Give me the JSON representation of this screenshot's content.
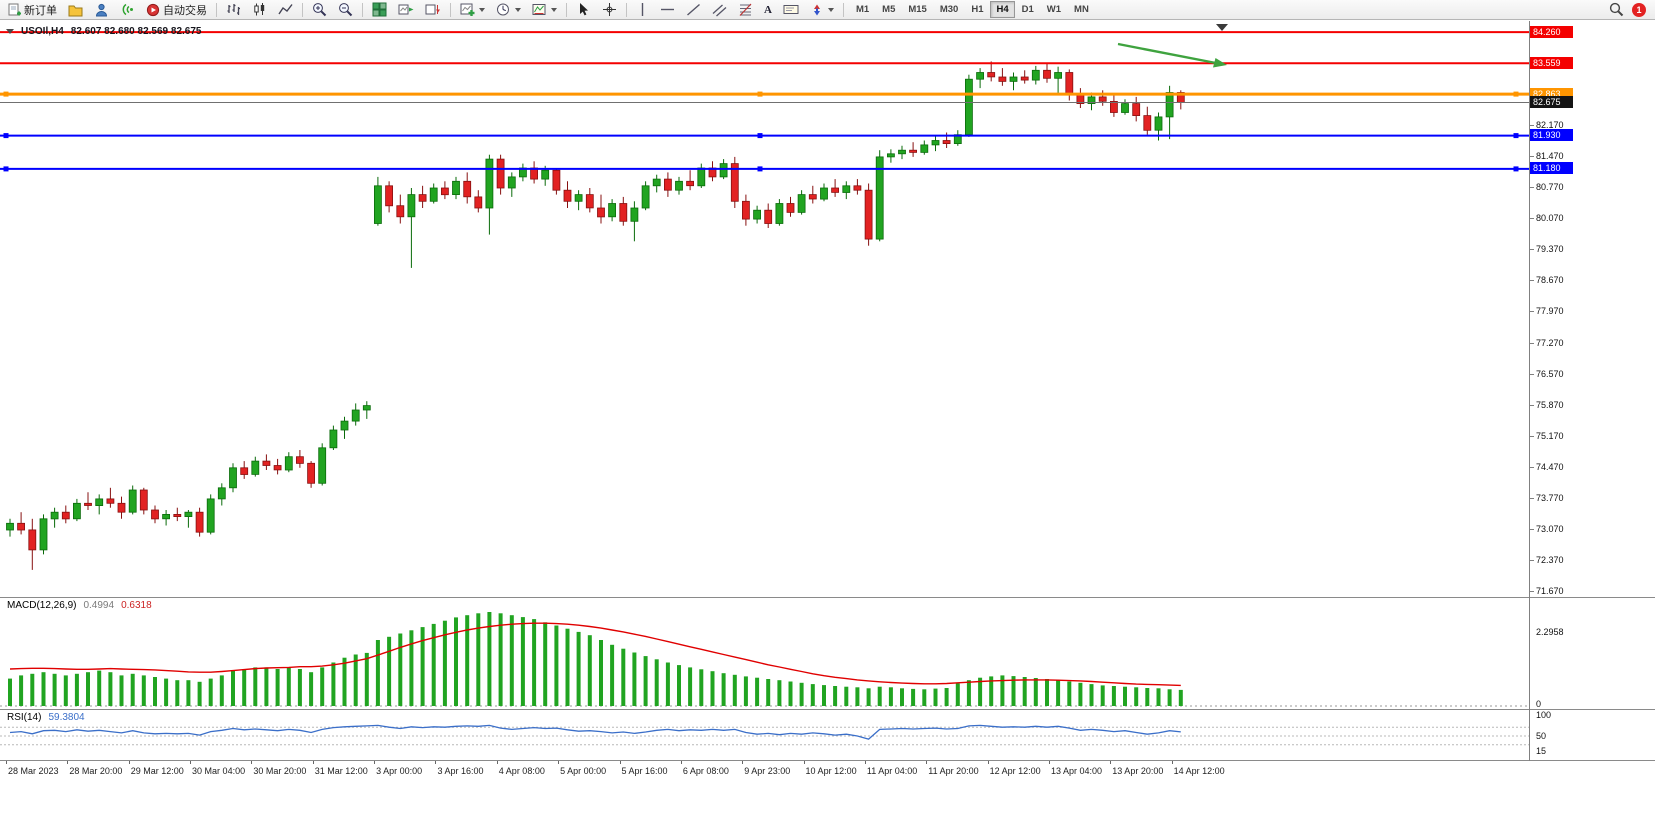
{
  "toolbar": {
    "new_order": "新订单",
    "auto_trading": "自动交易",
    "timeframes": [
      "M1",
      "M5",
      "M15",
      "M30",
      "H1",
      "H4",
      "D1",
      "W1",
      "MN"
    ],
    "active_timeframe": "H4",
    "notification_count": "1",
    "icon_names": [
      "new-order-icon",
      "folder-icon",
      "profile-icon",
      "signals-icon",
      "autotrading-icon",
      "bar-chart-icon",
      "candlestick-chart-icon",
      "line-chart-icon",
      "zoom-in-icon",
      "zoom-out-icon",
      "tile-windows-icon",
      "auto-scroll-icon",
      "chart-shift-icon",
      "indicators-icon",
      "periods-icon",
      "templates-icon",
      "cursor-icon",
      "crosshair-icon",
      "vertical-line-icon",
      "horizontal-line-icon",
      "trendline-icon",
      "channel-icon",
      "fibonacci-icon",
      "text-icon",
      "text-label-icon",
      "arrows-icon",
      "search-icon"
    ]
  },
  "icons": {
    "text_glyph": "A"
  },
  "chart": {
    "symbol_period": "USOIl,H4",
    "ohlc_text": "82.607 82.680 82.569 82.675",
    "arrow_color": "#3fa33f",
    "hlines": [
      {
        "price": 84.26,
        "label": "84.260",
        "color": "#f40000",
        "width": 2,
        "handles": false
      },
      {
        "price": 83.559,
        "label": "83.559",
        "color": "#f40000",
        "width": 2,
        "handles": false
      },
      {
        "price": 82.863,
        "label": "82.863",
        "color": "#ff9500",
        "width": 3,
        "handles": true
      },
      {
        "price": 82.675,
        "label": "82.675",
        "color": "#707070",
        "width": 1,
        "handles": false,
        "badge": "#141414"
      },
      {
        "price": 81.93,
        "label": "81.930",
        "color": "#0000ff",
        "width": 2,
        "handles": true
      },
      {
        "price": 81.18,
        "label": "81.180",
        "color": "#0000ff",
        "width": 2,
        "handles": true
      }
    ],
    "price_ticks": [
      "82.170",
      "81.470",
      "80.770",
      "80.070",
      "79.370",
      "78.670",
      "77.970",
      "77.270",
      "76.570",
      "75.870",
      "75.170",
      "74.470",
      "73.770",
      "73.070",
      "72.370",
      "71.670"
    ]
  },
  "chart_data": {
    "type": "candlestick",
    "symbol": "USOIl",
    "period": "H4",
    "ylim": [
      71.54,
      84.51
    ],
    "up_color": "#21a421",
    "down_color": "#e22222",
    "candles": [
      [
        73.05,
        73.3,
        72.9,
        73.2
      ],
      [
        73.2,
        73.45,
        72.95,
        73.05
      ],
      [
        73.05,
        73.3,
        72.15,
        72.6
      ],
      [
        72.6,
        73.4,
        72.5,
        73.3
      ],
      [
        73.3,
        73.55,
        73.1,
        73.45
      ],
      [
        73.45,
        73.6,
        73.2,
        73.3
      ],
      [
        73.3,
        73.75,
        73.25,
        73.65
      ],
      [
        73.65,
        73.9,
        73.5,
        73.6
      ],
      [
        73.6,
        73.85,
        73.4,
        73.75
      ],
      [
        73.75,
        74.0,
        73.55,
        73.65
      ],
      [
        73.65,
        73.8,
        73.3,
        73.45
      ],
      [
        73.45,
        74.05,
        73.4,
        73.95
      ],
      [
        73.95,
        74.0,
        73.4,
        73.5
      ],
      [
        73.5,
        73.6,
        73.2,
        73.3
      ],
      [
        73.3,
        73.5,
        73.15,
        73.4
      ],
      [
        73.4,
        73.55,
        73.25,
        73.35
      ],
      [
        73.35,
        73.5,
        73.1,
        73.45
      ],
      [
        73.45,
        73.55,
        72.9,
        73.0
      ],
      [
        73.0,
        73.85,
        72.95,
        73.75
      ],
      [
        73.75,
        74.1,
        73.6,
        74.0
      ],
      [
        74.0,
        74.55,
        73.9,
        74.45
      ],
      [
        74.45,
        74.6,
        74.2,
        74.3
      ],
      [
        74.3,
        74.7,
        74.25,
        74.6
      ],
      [
        74.6,
        74.75,
        74.4,
        74.5
      ],
      [
        74.5,
        74.65,
        74.3,
        74.4
      ],
      [
        74.4,
        74.8,
        74.35,
        74.7
      ],
      [
        74.7,
        74.85,
        74.45,
        74.55
      ],
      [
        74.55,
        74.6,
        74.0,
        74.1
      ],
      [
        74.1,
        75.0,
        74.05,
        74.9
      ],
      [
        74.9,
        75.4,
        74.85,
        75.3
      ],
      [
        75.3,
        75.6,
        75.1,
        75.5
      ],
      [
        75.5,
        75.9,
        75.4,
        75.75
      ],
      [
        75.75,
        75.95,
        75.55,
        75.85
      ],
      [
        79.95,
        81.0,
        79.9,
        80.8
      ],
      [
        80.8,
        80.9,
        80.2,
        80.35
      ],
      [
        80.35,
        80.6,
        79.95,
        80.1
      ],
      [
        80.1,
        80.75,
        78.95,
        80.6
      ],
      [
        80.6,
        80.8,
        80.3,
        80.45
      ],
      [
        80.45,
        80.85,
        80.4,
        80.75
      ],
      [
        80.75,
        80.9,
        80.5,
        80.6
      ],
      [
        80.6,
        81.0,
        80.5,
        80.9
      ],
      [
        80.9,
        81.1,
        80.4,
        80.55
      ],
      [
        80.55,
        80.7,
        80.2,
        80.3
      ],
      [
        80.3,
        81.5,
        79.7,
        81.4
      ],
      [
        81.4,
        81.5,
        80.6,
        80.75
      ],
      [
        80.75,
        81.1,
        80.55,
        81.0
      ],
      [
        81.0,
        81.3,
        80.9,
        81.2
      ],
      [
        81.2,
        81.35,
        80.85,
        80.95
      ],
      [
        80.95,
        81.25,
        80.8,
        81.15
      ],
      [
        81.15,
        81.2,
        80.6,
        80.7
      ],
      [
        80.7,
        80.9,
        80.3,
        80.45
      ],
      [
        80.45,
        80.7,
        80.25,
        80.6
      ],
      [
        80.6,
        80.75,
        80.2,
        80.3
      ],
      [
        80.3,
        80.6,
        79.95,
        80.1
      ],
      [
        80.1,
        80.5,
        80.0,
        80.4
      ],
      [
        80.4,
        80.55,
        79.9,
        80.0
      ],
      [
        80.0,
        80.45,
        79.55,
        80.3
      ],
      [
        80.3,
        80.9,
        80.25,
        80.8
      ],
      [
        80.8,
        81.05,
        80.65,
        80.95
      ],
      [
        80.95,
        81.1,
        80.55,
        80.7
      ],
      [
        80.7,
        81.0,
        80.6,
        80.9
      ],
      [
        80.9,
        81.15,
        80.7,
        80.8
      ],
      [
        80.8,
        81.3,
        80.75,
        81.2
      ],
      [
        81.2,
        81.35,
        80.9,
        81.0
      ],
      [
        81.0,
        81.4,
        80.95,
        81.3
      ],
      [
        81.3,
        81.45,
        80.3,
        80.45
      ],
      [
        80.45,
        80.6,
        79.9,
        80.05
      ],
      [
        80.05,
        80.35,
        79.95,
        80.25
      ],
      [
        80.25,
        80.4,
        79.85,
        79.95
      ],
      [
        79.95,
        80.5,
        79.9,
        80.4
      ],
      [
        80.4,
        80.55,
        80.1,
        80.2
      ],
      [
        80.2,
        80.7,
        80.15,
        80.6
      ],
      [
        80.6,
        80.8,
        80.4,
        80.5
      ],
      [
        80.5,
        80.85,
        80.45,
        80.75
      ],
      [
        80.75,
        80.95,
        80.55,
        80.65
      ],
      [
        80.65,
        80.9,
        80.5,
        80.8
      ],
      [
        80.8,
        80.95,
        80.6,
        80.7
      ],
      [
        80.7,
        80.85,
        79.45,
        79.6
      ],
      [
        79.6,
        81.6,
        79.55,
        81.45
      ],
      [
        81.45,
        81.62,
        81.32,
        81.52
      ],
      [
        81.52,
        81.7,
        81.4,
        81.6
      ],
      [
        81.6,
        81.78,
        81.45,
        81.55
      ],
      [
        81.55,
        81.82,
        81.5,
        81.72
      ],
      [
        81.72,
        81.92,
        81.58,
        81.82
      ],
      [
        81.82,
        82.0,
        81.65,
        81.75
      ],
      [
        81.75,
        82.05,
        81.7,
        81.95
      ],
      [
        81.95,
        83.3,
        81.9,
        83.2
      ],
      [
        83.2,
        83.45,
        83.0,
        83.35
      ],
      [
        83.35,
        83.6,
        83.15,
        83.25
      ],
      [
        83.25,
        83.45,
        83.05,
        83.15
      ],
      [
        83.15,
        83.35,
        82.95,
        83.25
      ],
      [
        83.25,
        83.4,
        83.1,
        83.18
      ],
      [
        83.18,
        83.5,
        83.08,
        83.4
      ],
      [
        83.4,
        83.55,
        83.12,
        83.22
      ],
      [
        83.22,
        83.48,
        82.85,
        83.35
      ],
      [
        83.35,
        83.42,
        82.72,
        82.85
      ],
      [
        82.85,
        83.0,
        82.55,
        82.65
      ],
      [
        82.65,
        82.9,
        82.5,
        82.8
      ],
      [
        82.8,
        82.95,
        82.6,
        82.7
      ],
      [
        82.7,
        82.85,
        82.35,
        82.45
      ],
      [
        82.45,
        82.75,
        82.4,
        82.65
      ],
      [
        82.65,
        82.8,
        82.25,
        82.38
      ],
      [
        82.38,
        82.58,
        81.95,
        82.05
      ],
      [
        82.05,
        82.45,
        81.82,
        82.35
      ],
      [
        82.35,
        83.05,
        81.85,
        82.9
      ],
      [
        82.9,
        82.95,
        82.52,
        82.675
      ]
    ],
    "macd": {
      "label": "MACD(12,26,9)",
      "value_main": "0.4994",
      "value_signal": "0.6318",
      "scale": [
        "2.2958",
        "0"
      ],
      "ylim": [
        0,
        3.45
      ],
      "hist_color": "#21a421",
      "signal_color": "#e00000",
      "histogram": [
        0.85,
        0.95,
        1.0,
        1.05,
        1.0,
        0.95,
        1.0,
        1.05,
        1.1,
        1.05,
        0.95,
        1.0,
        0.95,
        0.9,
        0.85,
        0.8,
        0.8,
        0.75,
        0.85,
        0.95,
        1.1,
        1.15,
        1.2,
        1.2,
        1.15,
        1.2,
        1.15,
        1.05,
        1.2,
        1.35,
        1.5,
        1.6,
        1.65,
        2.05,
        2.15,
        2.25,
        2.35,
        2.45,
        2.55,
        2.65,
        2.75,
        2.82,
        2.88,
        2.92,
        2.88,
        2.82,
        2.76,
        2.7,
        2.6,
        2.5,
        2.4,
        2.3,
        2.2,
        2.05,
        1.9,
        1.78,
        1.66,
        1.55,
        1.45,
        1.35,
        1.27,
        1.2,
        1.14,
        1.08,
        1.02,
        0.97,
        0.92,
        0.88,
        0.84,
        0.8,
        0.76,
        0.72,
        0.68,
        0.65,
        0.62,
        0.6,
        0.58,
        0.55,
        0.6,
        0.58,
        0.55,
        0.53,
        0.52,
        0.54,
        0.56,
        0.7,
        0.8,
        0.88,
        0.92,
        0.95,
        0.93,
        0.9,
        0.87,
        0.84,
        0.8,
        0.76,
        0.72,
        0.68,
        0.64,
        0.62,
        0.6,
        0.58,
        0.56,
        0.55,
        0.52,
        0.5
      ],
      "signal": [
        1.15,
        1.16,
        1.17,
        1.17,
        1.16,
        1.15,
        1.14,
        1.14,
        1.15,
        1.16,
        1.15,
        1.14,
        1.13,
        1.12,
        1.1,
        1.08,
        1.06,
        1.05,
        1.05,
        1.07,
        1.1,
        1.13,
        1.16,
        1.18,
        1.19,
        1.2,
        1.22,
        1.22,
        1.24,
        1.28,
        1.33,
        1.4,
        1.47,
        1.58,
        1.7,
        1.82,
        1.93,
        2.03,
        2.12,
        2.21,
        2.29,
        2.36,
        2.42,
        2.47,
        2.51,
        2.54,
        2.56,
        2.57,
        2.57,
        2.56,
        2.54,
        2.51,
        2.47,
        2.42,
        2.36,
        2.3,
        2.23,
        2.16,
        2.08,
        2.0,
        1.92,
        1.84,
        1.76,
        1.68,
        1.6,
        1.52,
        1.44,
        1.36,
        1.28,
        1.21,
        1.14,
        1.07,
        1.0,
        0.94,
        0.89,
        0.85,
        0.81,
        0.78,
        0.75,
        0.73,
        0.71,
        0.7,
        0.69,
        0.69,
        0.7,
        0.72,
        0.74,
        0.76,
        0.78,
        0.79,
        0.8,
        0.81,
        0.81,
        0.81,
        0.8,
        0.79,
        0.78,
        0.76,
        0.74,
        0.72,
        0.7,
        0.68,
        0.67,
        0.66,
        0.65,
        0.64
      ]
    },
    "rsi": {
      "label": "RSI(14)",
      "value": "59.3804",
      "scale": [
        "100",
        "50",
        "15"
      ],
      "levels": [
        70,
        50,
        30
      ],
      "color": "#3b6fc9",
      "values": [
        58,
        60,
        55,
        62,
        63,
        60,
        64,
        61,
        63,
        60,
        57,
        62,
        57,
        55,
        56,
        55,
        56,
        52,
        60,
        63,
        67,
        64,
        66,
        64,
        62,
        65,
        63,
        58,
        65,
        69,
        71,
        72,
        73,
        74,
        70,
        67,
        71,
        69,
        71,
        70,
        72,
        73,
        72,
        74,
        68,
        65,
        67,
        69,
        67,
        68,
        64,
        61,
        62,
        60,
        57,
        59,
        56,
        59,
        63,
        65,
        62,
        64,
        63,
        65,
        63,
        65,
        58,
        54,
        56,
        53,
        56,
        54,
        57,
        55,
        52,
        54,
        50,
        43,
        65,
        66,
        67,
        66,
        67,
        68,
        66,
        67,
        73,
        74,
        72,
        70,
        71,
        70,
        72,
        70,
        72,
        68,
        63,
        65,
        63,
        60,
        62,
        58,
        54,
        57,
        62,
        59.38
      ]
    },
    "time_labels": [
      "28 Mar 2023",
      "28 Mar 20:00",
      "29 Mar 12:00",
      "30 Mar 04:00",
      "30 Mar 20:00",
      "31 Mar 12:00",
      "3 Apr 00:00",
      "3 Apr 16:00",
      "4 Apr 08:00",
      "5 Apr 00:00",
      "5 Apr 16:00",
      "6 Apr 08:00",
      "9 Apr 23:00",
      "10 Apr 12:00",
      "11 Apr 04:00",
      "11 Apr 20:00",
      "12 Apr 12:00",
      "13 Apr 04:00",
      "13 Apr 20:00",
      "14 Apr 12:00"
    ]
  }
}
